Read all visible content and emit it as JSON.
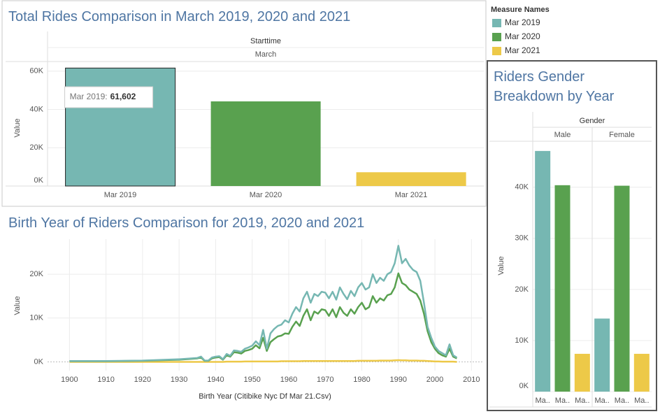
{
  "legend": {
    "title": "Measure Names",
    "items": [
      {
        "name": "Mar 2019",
        "color": "#76b7b2"
      },
      {
        "name": "Mar 2020",
        "color": "#59a14f"
      },
      {
        "name": "Mar 2021",
        "color": "#edc948"
      }
    ]
  },
  "chart_data": [
    {
      "type": "bar",
      "title": "Total Rides Comparison in March 2019, 2020 and 2021",
      "x_header": "Starttime",
      "x_subheader": "March",
      "y_label": "Value",
      "categories": [
        "Mar 2019",
        "Mar 2020",
        "Mar 2021"
      ],
      "values": [
        61602,
        44200,
        7200
      ],
      "selected_index": 0,
      "tooltip": {
        "label": "Mar 2019:",
        "value": "61,602"
      },
      "ylim": [
        0,
        65000
      ],
      "yticks": [
        {
          "value": 0,
          "label": "0K"
        },
        {
          "value": 20000,
          "label": "20K"
        },
        {
          "value": 40000,
          "label": "40K"
        },
        {
          "value": 60000,
          "label": "60K"
        }
      ],
      "grid": true
    },
    {
      "type": "line",
      "title": "Birth Year of Riders Comparison for 2019, 2020 and 2021",
      "x_label": "Birth Year (Citibike Nyc Df Mar 21.Csv)",
      "y_label": "Value",
      "x": [
        1900,
        1910,
        1920,
        1930,
        1935,
        1936,
        1937,
        1938,
        1939,
        1940,
        1941,
        1942,
        1943,
        1944,
        1945,
        1946,
        1947,
        1948,
        1949,
        1950,
        1951,
        1952,
        1953,
        1954,
        1955,
        1956,
        1957,
        1958,
        1959,
        1960,
        1961,
        1962,
        1963,
        1964,
        1965,
        1966,
        1967,
        1968,
        1969,
        1970,
        1971,
        1972,
        1973,
        1974,
        1975,
        1976,
        1977,
        1978,
        1979,
        1980,
        1981,
        1982,
        1983,
        1984,
        1985,
        1986,
        1987,
        1988,
        1989,
        1990,
        1991,
        1992,
        1993,
        1994,
        1995,
        1996,
        1997,
        1998,
        1999,
        2000,
        2001,
        2002,
        2003,
        2004,
        2005,
        2006
      ],
      "series": [
        {
          "values": [
            200,
            200,
            300,
            600,
            900,
            1200,
            300,
            300,
            1000,
            1200,
            1300,
            600,
            1800,
            1400,
            2600,
            2500,
            2300,
            3000,
            3300,
            3700,
            4700,
            3800,
            7300,
            3000,
            6500,
            7500,
            8200,
            8500,
            9500,
            9000,
            11000,
            12500,
            11500,
            14500,
            16000,
            13500,
            15500,
            15000,
            16000,
            15800,
            14500,
            16000,
            14200,
            17000,
            15500,
            14300,
            16200,
            15000,
            17000,
            18000,
            16500,
            17000,
            20000,
            18000,
            19200,
            18500,
            20000,
            20500,
            22500,
            26500,
            22500,
            23500,
            22000,
            21000,
            20500,
            18500,
            13500,
            8000,
            5500,
            3500,
            2500,
            2000,
            1500,
            4000,
            1500,
            1000
          ]
        },
        {
          "values": [
            150,
            150,
            250,
            500,
            800,
            1000,
            250,
            250,
            800,
            1000,
            1100,
            500,
            1500,
            1200,
            2200,
            2100,
            1900,
            2500,
            2700,
            3000,
            3800,
            3100,
            5500,
            2500,
            4500,
            5200,
            5800,
            6000,
            6500,
            6400,
            8000,
            9200,
            8200,
            10500,
            12000,
            9500,
            11500,
            11000,
            12000,
            11800,
            10500,
            12000,
            10200,
            12500,
            11200,
            10500,
            12000,
            11000,
            12500,
            13500,
            12000,
            12500,
            15000,
            13500,
            14500,
            14000,
            15200,
            15500,
            17000,
            20200,
            18000,
            17500,
            16500,
            16000,
            15500,
            14000,
            11000,
            7000,
            4500,
            3000,
            2000,
            1500,
            1200,
            3000,
            1200,
            800
          ]
        },
        {
          "values": [
            0,
            0,
            0,
            0,
            0,
            0,
            0,
            0,
            0,
            0,
            0,
            0,
            50,
            50,
            50,
            50,
            50,
            100,
            100,
            100,
            100,
            100,
            100,
            100,
            100,
            100,
            100,
            150,
            150,
            150,
            150,
            150,
            150,
            200,
            200,
            200,
            200,
            200,
            200,
            200,
            200,
            200,
            200,
            200,
            200,
            200,
            200,
            200,
            250,
            250,
            250,
            250,
            250,
            250,
            300,
            300,
            300,
            300,
            350,
            400,
            350,
            350,
            300,
            300,
            300,
            250,
            250,
            200,
            150,
            100,
            100,
            50,
            50,
            50,
            50,
            0
          ]
        }
      ],
      "xlim": [
        1894,
        2013
      ],
      "xticks": [
        1900,
        1910,
        1920,
        1930,
        1940,
        1950,
        1960,
        1970,
        1980,
        1990,
        2000,
        2010
      ],
      "ylim": [
        -2000,
        28000
      ],
      "yticks": [
        {
          "value": 0,
          "label": "0K"
        },
        {
          "value": 10000,
          "label": "10K"
        },
        {
          "value": 20000,
          "label": "20K"
        }
      ],
      "grid": true
    },
    {
      "type": "bar",
      "title": "Riders Gender Breakdown by Year",
      "x_header": "Gender",
      "y_label": "Value",
      "facets": [
        "Male",
        "Female"
      ],
      "bar_labels": [
        "Ma..",
        "Ma..",
        "Ma.."
      ],
      "series": [
        {
          "values": [
            47100,
            14300
          ]
        },
        {
          "values": [
            40400,
            40300
          ]
        },
        {
          "values": [
            7400,
            7400
          ]
        }
      ],
      "ylim": [
        0,
        49000
      ],
      "yticks": [
        {
          "value": 0,
          "label": "0K"
        },
        {
          "value": 10000,
          "label": "10K"
        },
        {
          "value": 20000,
          "label": "20K"
        },
        {
          "value": 30000,
          "label": "30K"
        },
        {
          "value": 40000,
          "label": "40K"
        }
      ],
      "grid": true
    }
  ]
}
